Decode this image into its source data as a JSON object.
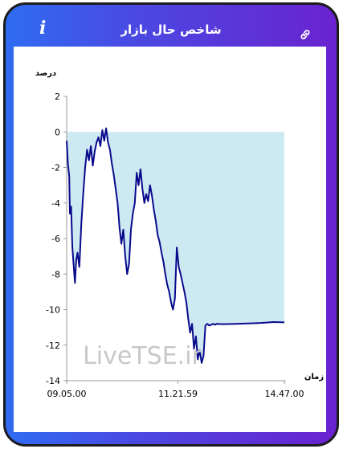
{
  "header": {
    "title": "شاخص حال بازار",
    "info_icon": "info-icon",
    "link_icon": "link-icon"
  },
  "colors": {
    "gradient_start": "#2f6cf2",
    "gradient_end": "#6a22cf",
    "line": "#0a0a8c",
    "fill": "#cde9f2"
  },
  "chart_data": {
    "type": "area",
    "ylabel": "درصد",
    "xlabel": "زمان",
    "ylim": [
      -14,
      2
    ],
    "yticks": [
      "2",
      "0",
      "-2",
      "-4",
      "-6",
      "-8",
      "-10",
      "-12",
      "-14"
    ],
    "xticks": [
      "09.05.00",
      "11.21.59",
      "14.47.00"
    ],
    "watermark": "LiveTSE.ir",
    "baseline": 0,
    "x": [
      "09:05",
      "09:07",
      "09:09",
      "09:10",
      "09:12",
      "09:14",
      "09:16",
      "09:18",
      "09:20",
      "09:22",
      "09:25",
      "09:28",
      "09:31",
      "09:34",
      "09:37",
      "09:40",
      "09:43",
      "09:46",
      "09:49",
      "09:52",
      "09:55",
      "09:58",
      "10:01",
      "10:04",
      "10:07",
      "10:10",
      "10:13",
      "10:16",
      "10:19",
      "10:22",
      "10:25",
      "10:28",
      "10:31",
      "10:34",
      "10:37",
      "10:40",
      "10:43",
      "10:46",
      "10:49",
      "10:52",
      "10:55",
      "10:58",
      "11:01",
      "11:04",
      "11:07",
      "11:10",
      "11:13",
      "11:16",
      "11:19",
      "11:22",
      "11:25",
      "11:28",
      "11:31",
      "11:34",
      "11:37",
      "11:40",
      "11:43",
      "11:46",
      "11:49",
      "11:52",
      "11:55",
      "11:58",
      "12:01",
      "12:04",
      "12:07",
      "12:10",
      "12:13",
      "12:16",
      "12:19",
      "12:22",
      "12:25",
      "12:28",
      "12:31",
      "12:34",
      "12:37",
      "12:40",
      "12:43",
      "12:46",
      "12:49",
      "12:52",
      "12:55",
      "12:58",
      "13:01",
      "13:10",
      "13:30",
      "13:50",
      "14:10",
      "14:30",
      "14:47"
    ],
    "values": [
      -0.5,
      -1.8,
      -2.5,
      -4.6,
      -4.2,
      -6.5,
      -7.5,
      -8.5,
      -7.2,
      -6.8,
      -7.6,
      -5.2,
      -3.5,
      -2.0,
      -1.0,
      -1.6,
      -0.8,
      -1.9,
      -1.1,
      -0.6,
      -0.3,
      -0.8,
      0.1,
      -0.5,
      0.2,
      -0.6,
      -1.0,
      -1.8,
      -2.4,
      -3.2,
      -4.0,
      -5.4,
      -6.3,
      -5.5,
      -7.0,
      -8.0,
      -7.4,
      -5.5,
      -4.6,
      -4.0,
      -2.3,
      -3.0,
      -2.1,
      -3.2,
      -4.0,
      -3.5,
      -3.9,
      -3.0,
      -3.6,
      -4.4,
      -5.0,
      -5.8,
      -6.2,
      -6.8,
      -7.3,
      -8.0,
      -8.6,
      -9.0,
      -9.6,
      -10.0,
      -9.4,
      -6.5,
      -7.6,
      -8.0,
      -8.5,
      -9.0,
      -9.6,
      -10.5,
      -11.3,
      -10.8,
      -12.2,
      -11.5,
      -12.8,
      -12.3,
      -13.0,
      -12.6,
      -10.9,
      -10.8,
      -10.9,
      -10.85,
      -10.8,
      -10.85,
      -10.8,
      -10.82,
      -10.8,
      -10.78,
      -10.75,
      -10.7,
      -10.72
    ]
  }
}
